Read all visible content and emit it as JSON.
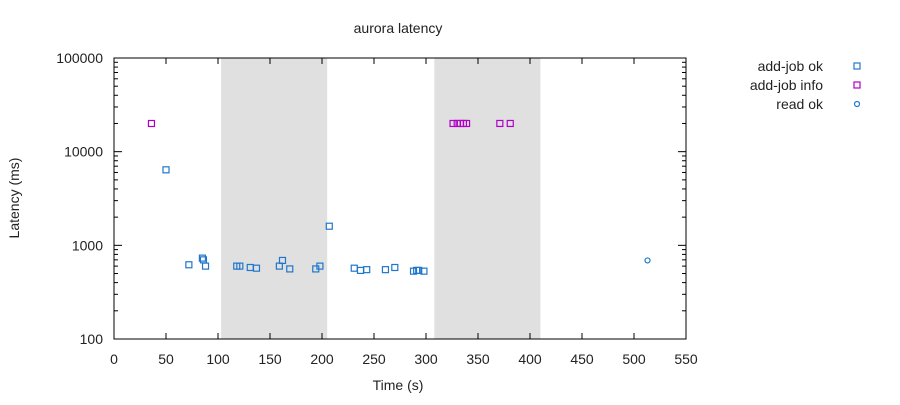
{
  "chart_data": {
    "type": "scatter",
    "title": "aurora latency",
    "xlabel": "Time (s)",
    "ylabel": "Latency (ms)",
    "xlim": [
      0,
      550
    ],
    "ylim": [
      100,
      100000
    ],
    "y_scale": "log",
    "x_ticks": [
      0,
      50,
      100,
      150,
      200,
      250,
      300,
      350,
      400,
      450,
      500,
      550
    ],
    "y_ticks": [
      {
        "value": 100,
        "label": "100"
      },
      {
        "value": 1000,
        "label": "1000"
      },
      {
        "value": 10000,
        "label": "10000"
      },
      {
        "value": 100000,
        "label": "100000"
      }
    ],
    "grid": false,
    "legend_position": "outside-right",
    "shaded_regions": [
      {
        "x_start": 103,
        "x_end": 205,
        "color": "#e0e0e0"
      },
      {
        "x_start": 308,
        "x_end": 410,
        "color": "#e0e0e0"
      }
    ],
    "series": [
      {
        "name": "add-job ok",
        "marker": "square",
        "color": "#1f77cc",
        "points": [
          {
            "x": 50,
            "y": 6400
          },
          {
            "x": 72,
            "y": 620
          },
          {
            "x": 85,
            "y": 730
          },
          {
            "x": 86,
            "y": 700
          },
          {
            "x": 88,
            "y": 600
          },
          {
            "x": 118,
            "y": 600
          },
          {
            "x": 121,
            "y": 600
          },
          {
            "x": 131,
            "y": 580
          },
          {
            "x": 137,
            "y": 570
          },
          {
            "x": 159,
            "y": 600
          },
          {
            "x": 162,
            "y": 690
          },
          {
            "x": 169,
            "y": 560
          },
          {
            "x": 194,
            "y": 560
          },
          {
            "x": 198,
            "y": 600
          },
          {
            "x": 207,
            "y": 1600
          },
          {
            "x": 231,
            "y": 570
          },
          {
            "x": 237,
            "y": 540
          },
          {
            "x": 243,
            "y": 550
          },
          {
            "x": 261,
            "y": 550
          },
          {
            "x": 270,
            "y": 580
          },
          {
            "x": 288,
            "y": 530
          },
          {
            "x": 291,
            "y": 540
          },
          {
            "x": 293,
            "y": 540
          },
          {
            "x": 298,
            "y": 530
          }
        ]
      },
      {
        "name": "add-job info",
        "marker": "square",
        "color": "#b000c8",
        "points": [
          {
            "x": 36,
            "y": 20000
          },
          {
            "x": 326,
            "y": 20000
          },
          {
            "x": 330,
            "y": 20000
          },
          {
            "x": 333,
            "y": 20000
          },
          {
            "x": 336,
            "y": 20000
          },
          {
            "x": 339,
            "y": 20000
          },
          {
            "x": 371,
            "y": 20000
          },
          {
            "x": 381,
            "y": 20000
          }
        ]
      },
      {
        "name": "read ok",
        "marker": "circle",
        "color": "#1f77cc",
        "points": [
          {
            "x": 513,
            "y": 690
          }
        ]
      }
    ]
  }
}
